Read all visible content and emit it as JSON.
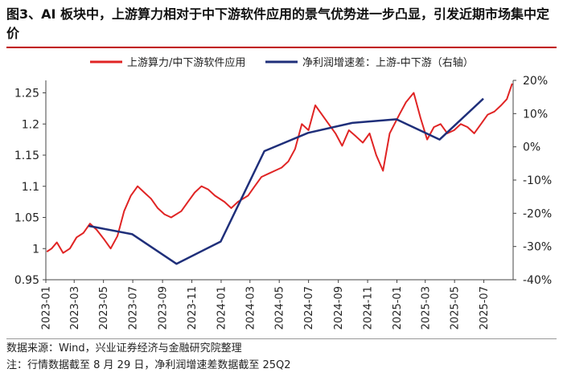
{
  "title": "图3、AI 板块中，上游算力相对于中下游软件应用的景气优势进一步凸显，引发近期市场集中定价",
  "colors": {
    "series1": "#e02424",
    "series2": "#1f2f7a",
    "rule": "#c00000"
  },
  "notes": {
    "source": "数据来源：Wind，兴业证券经济与金融研究院整理",
    "note": "注：行情数据截至 8 月 29 日，净利润增速差数据截至 25Q2"
  },
  "chart_data": {
    "type": "line",
    "title": "图3、AI 板块中，上游算力相对于中下游软件应用的景气优势进一步凸显，引发近期市场集中定价",
    "legend_position": "top",
    "grid": false,
    "x_tick_labels": [
      "2023-01",
      "2023-03",
      "2023-05",
      "2023-07",
      "2023-09",
      "2023-11",
      "2024-01",
      "2024-03",
      "2024-05",
      "2024-07",
      "2024-09",
      "2024-11",
      "2025-01",
      "2025-03",
      "2025-05",
      "2025-07"
    ],
    "x_range": [
      "2023-01",
      "2025-08"
    ],
    "y_left": {
      "range": [
        0.95,
        1.27
      ],
      "ticks": [
        "0.95",
        "1",
        "1.05",
        "1.1",
        "1.15",
        "1.2",
        "1.25"
      ]
    },
    "y_right": {
      "range": [
        -40,
        20
      ],
      "unit": "%",
      "ticks": [
        "-40%",
        "-30%",
        "-20%",
        "-10%",
        "0%",
        "10%",
        "20%"
      ]
    },
    "series": [
      {
        "name": "上游算力/中下游软件应用",
        "axis": "left",
        "points": [
          [
            "2023-01-03",
            0.995
          ],
          [
            "2023-01-13",
            1.0
          ],
          [
            "2023-01-24",
            1.01
          ],
          [
            "2023-02-06",
            0.993
          ],
          [
            "2023-02-20",
            1.0
          ],
          [
            "2023-03-06",
            1.018
          ],
          [
            "2023-03-20",
            1.025
          ],
          [
            "2023-04-03",
            1.04
          ],
          [
            "2023-04-17",
            1.03
          ],
          [
            "2023-05-02",
            1.015
          ],
          [
            "2023-05-16",
            1.0
          ],
          [
            "2023-05-30",
            1.02
          ],
          [
            "2023-06-13",
            1.06
          ],
          [
            "2023-06-27",
            1.085
          ],
          [
            "2023-07-11",
            1.1
          ],
          [
            "2023-07-25",
            1.09
          ],
          [
            "2023-08-08",
            1.08
          ],
          [
            "2023-08-22",
            1.065
          ],
          [
            "2023-09-05",
            1.055
          ],
          [
            "2023-09-19",
            1.05
          ],
          [
            "2023-10-10",
            1.06
          ],
          [
            "2023-10-24",
            1.075
          ],
          [
            "2023-11-07",
            1.09
          ],
          [
            "2023-11-21",
            1.1
          ],
          [
            "2023-12-05",
            1.095
          ],
          [
            "2023-12-19",
            1.085
          ],
          [
            "2024-01-08",
            1.075
          ],
          [
            "2024-01-22",
            1.065
          ],
          [
            "2024-02-05",
            1.075
          ],
          [
            "2024-02-26",
            1.085
          ],
          [
            "2024-03-11",
            1.1
          ],
          [
            "2024-03-25",
            1.115
          ],
          [
            "2024-04-08",
            1.12
          ],
          [
            "2024-04-22",
            1.125
          ],
          [
            "2024-05-06",
            1.13
          ],
          [
            "2024-05-20",
            1.14
          ],
          [
            "2024-06-03",
            1.16
          ],
          [
            "2024-06-17",
            1.2
          ],
          [
            "2024-07-01",
            1.19
          ],
          [
            "2024-07-15",
            1.23
          ],
          [
            "2024-07-29",
            1.215
          ],
          [
            "2024-08-12",
            1.2
          ],
          [
            "2024-08-26",
            1.185
          ],
          [
            "2024-09-09",
            1.165
          ],
          [
            "2024-09-23",
            1.19
          ],
          [
            "2024-10-08",
            1.18
          ],
          [
            "2024-10-22",
            1.17
          ],
          [
            "2024-11-05",
            1.185
          ],
          [
            "2024-11-19",
            1.15
          ],
          [
            "2024-12-03",
            1.125
          ],
          [
            "2024-12-17",
            1.185
          ],
          [
            "2025-01-06",
            1.215
          ],
          [
            "2025-01-20",
            1.235
          ],
          [
            "2025-02-05",
            1.25
          ],
          [
            "2025-02-19",
            1.21
          ],
          [
            "2025-03-05",
            1.175
          ],
          [
            "2025-03-19",
            1.195
          ],
          [
            "2025-04-02",
            1.2
          ],
          [
            "2025-04-16",
            1.185
          ],
          [
            "2025-04-30",
            1.19
          ],
          [
            "2025-05-14",
            1.2
          ],
          [
            "2025-05-28",
            1.195
          ],
          [
            "2025-06-11",
            1.185
          ],
          [
            "2025-06-25",
            1.2
          ],
          [
            "2025-07-09",
            1.215
          ],
          [
            "2025-07-23",
            1.22
          ],
          [
            "2025-08-06",
            1.23
          ],
          [
            "2025-08-18",
            1.24
          ],
          [
            "2025-08-29",
            1.265
          ]
        ]
      },
      {
        "name": "净利润增速差：上游-中下游（右轴）",
        "axis": "right",
        "points": [
          [
            "2023-03-31",
            -23.8
          ],
          [
            "2023-06-30",
            -26.3
          ],
          [
            "2023-09-30",
            -35.2
          ],
          [
            "2023-12-31",
            -28.5
          ],
          [
            "2024-03-31",
            -1.3
          ],
          [
            "2024-06-30",
            4.2
          ],
          [
            "2024-09-30",
            7.2
          ],
          [
            "2024-12-31",
            8.3
          ],
          [
            "2025-03-31",
            2.2
          ],
          [
            "2025-06-30",
            14.5
          ]
        ]
      }
    ]
  }
}
